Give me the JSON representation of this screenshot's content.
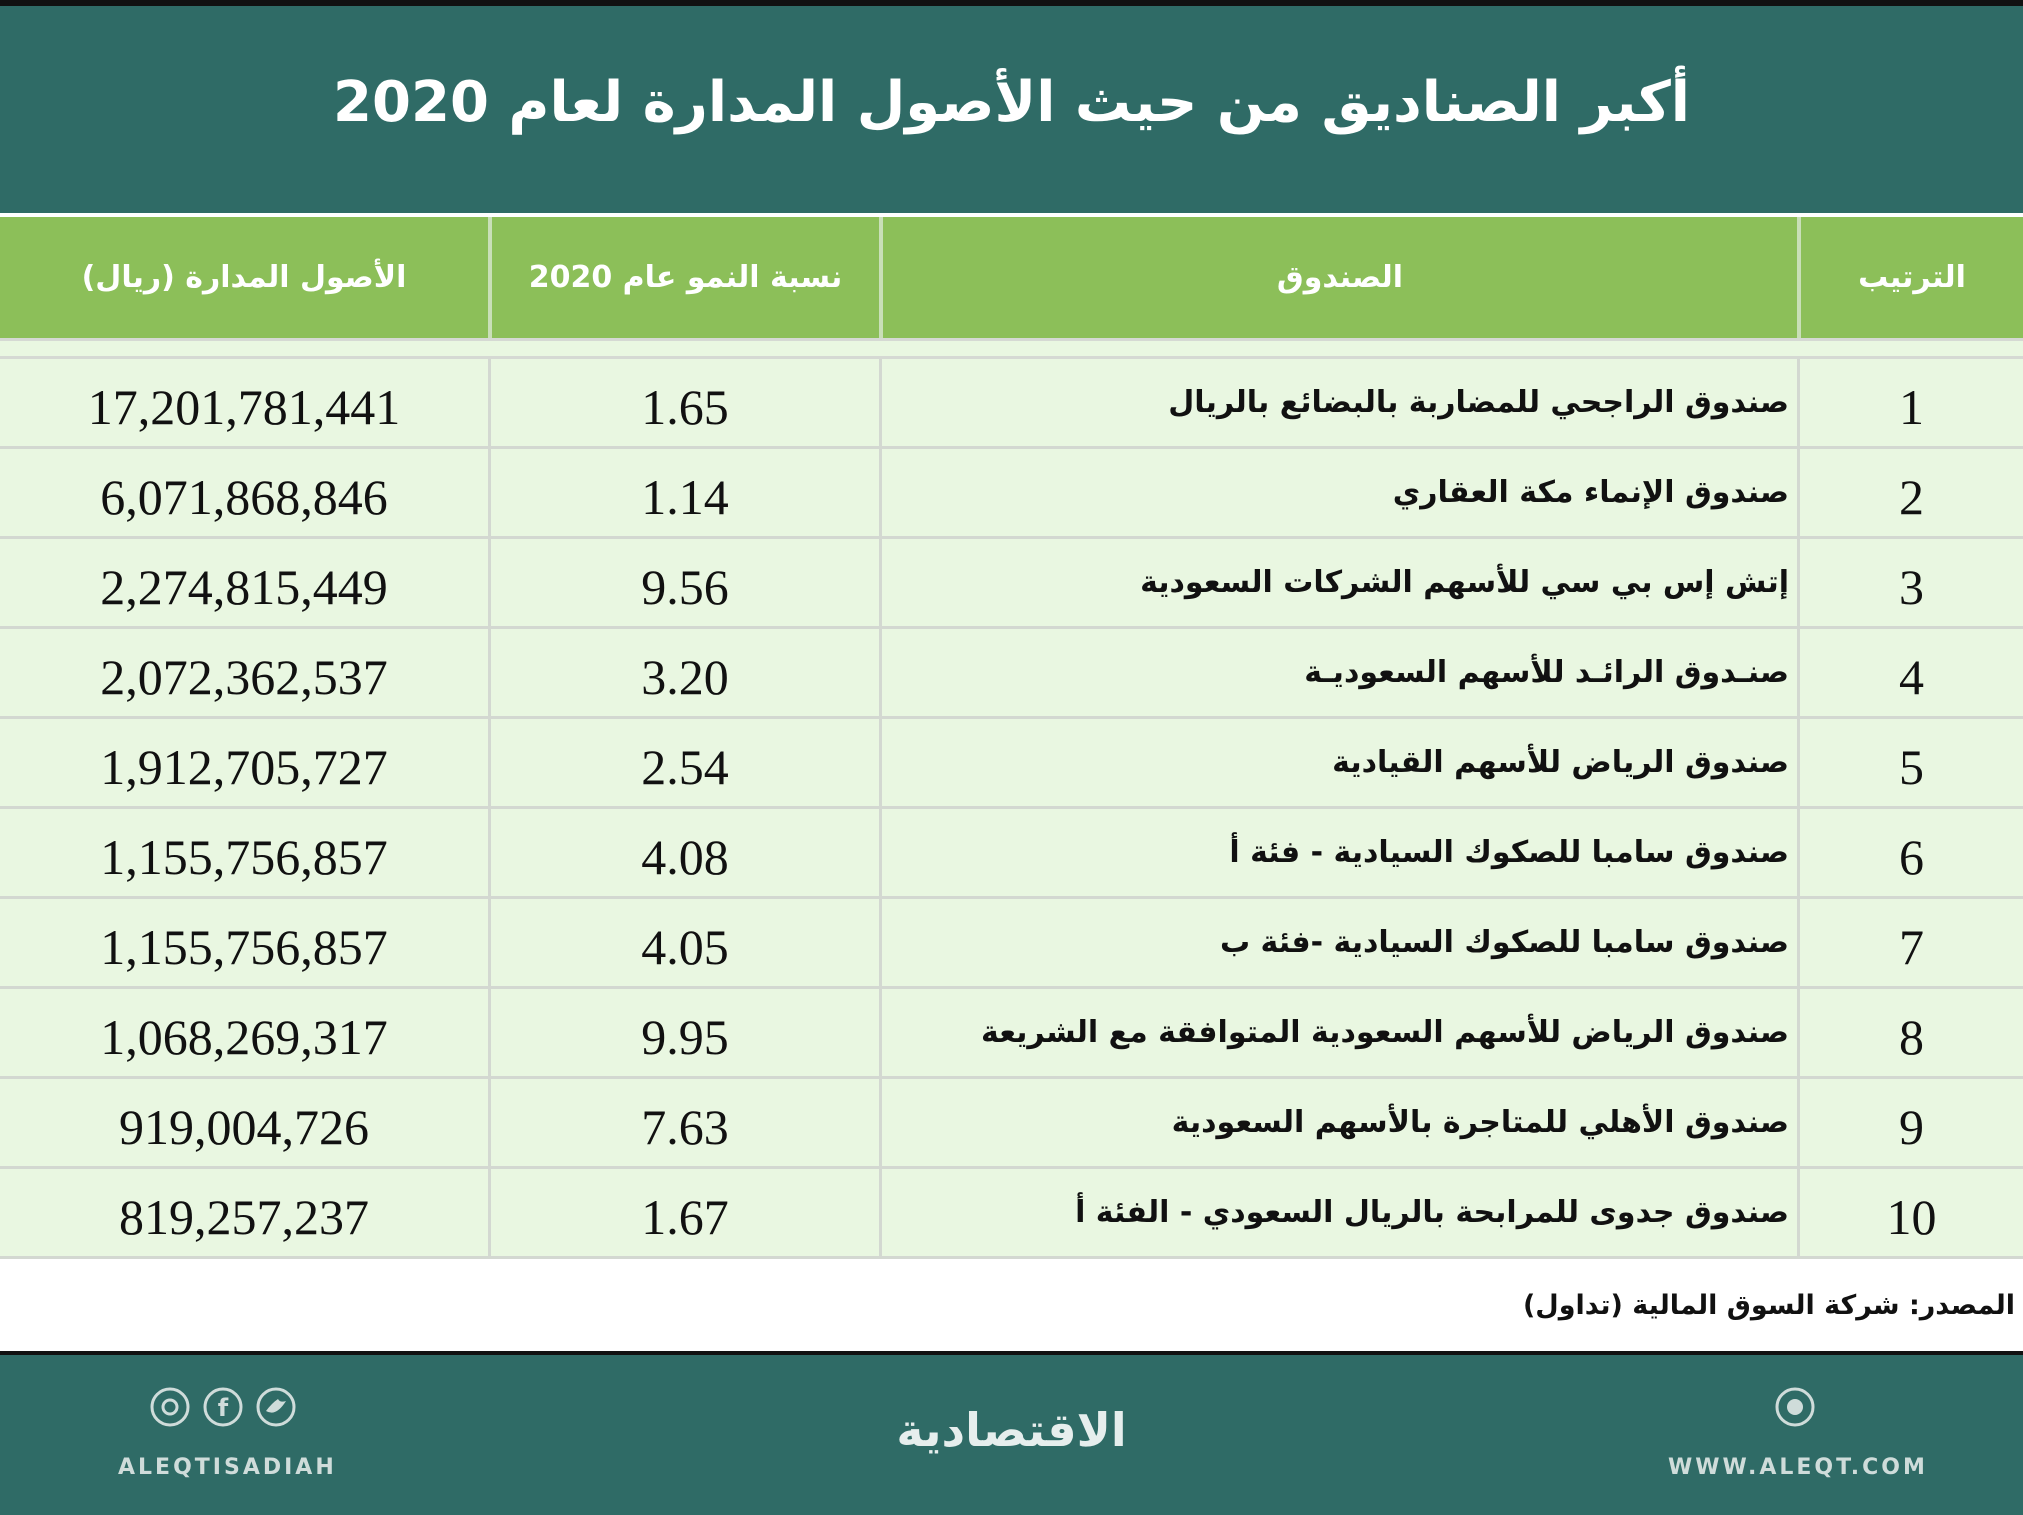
{
  "header": {
    "title": "أكبر الصناديق من حيث الأصول المدارة لعام 2020"
  },
  "table": {
    "columns": [
      "الترتيب",
      "الصندوق",
      "نسبة النمو عام 2020",
      "الأصول المدارة (ريال)"
    ],
    "rows": [
      [
        "1",
        "صندوق الراجحي للمضاربة بالبضائع بالريال",
        "1.65",
        "17,201,781,441"
      ],
      [
        "2",
        "صندوق الإنماء مكة العقاري",
        "1.14",
        "6,071,868,846"
      ],
      [
        "3",
        "إتش إس بي سي للأسهم الشركات السعودية",
        "9.56",
        "2,274,815,449"
      ],
      [
        "4",
        "صنـدوق الرائـد للأسهم السعوديـة",
        "3.20",
        "2,072,362,537"
      ],
      [
        "5",
        "صندوق الرياض للأسهم القيادية",
        "2.54",
        "1,912,705,727"
      ],
      [
        "6",
        "صندوق سامبا للصكوك السيادية - فئة أ",
        "4.08",
        "1,155,756,857"
      ],
      [
        "7",
        "صندوق سامبا للصكوك السيادية -فئة ب",
        "4.05",
        "1,155,756,857"
      ],
      [
        "8",
        "صندوق الرياض للأسهم السعودية المتوافقة مع الشريعة",
        "9.95",
        "1,068,269,317"
      ],
      [
        "9",
        "صندوق الأهلي للمتاجرة بالأسهم السعودية",
        "7.63",
        "919,004,726"
      ],
      [
        "10",
        "صندوق جدوى للمرابحة بالريال السعودي - الفئة أ",
        "1.67",
        "819,257,237"
      ]
    ]
  },
  "source": "المصدر: شركة السوق المالية (تداول)",
  "footer": {
    "handle": "ALEQTISADIAH",
    "logo": "الاقتصادية",
    "website": "WWW.ALEQT.COM"
  }
}
